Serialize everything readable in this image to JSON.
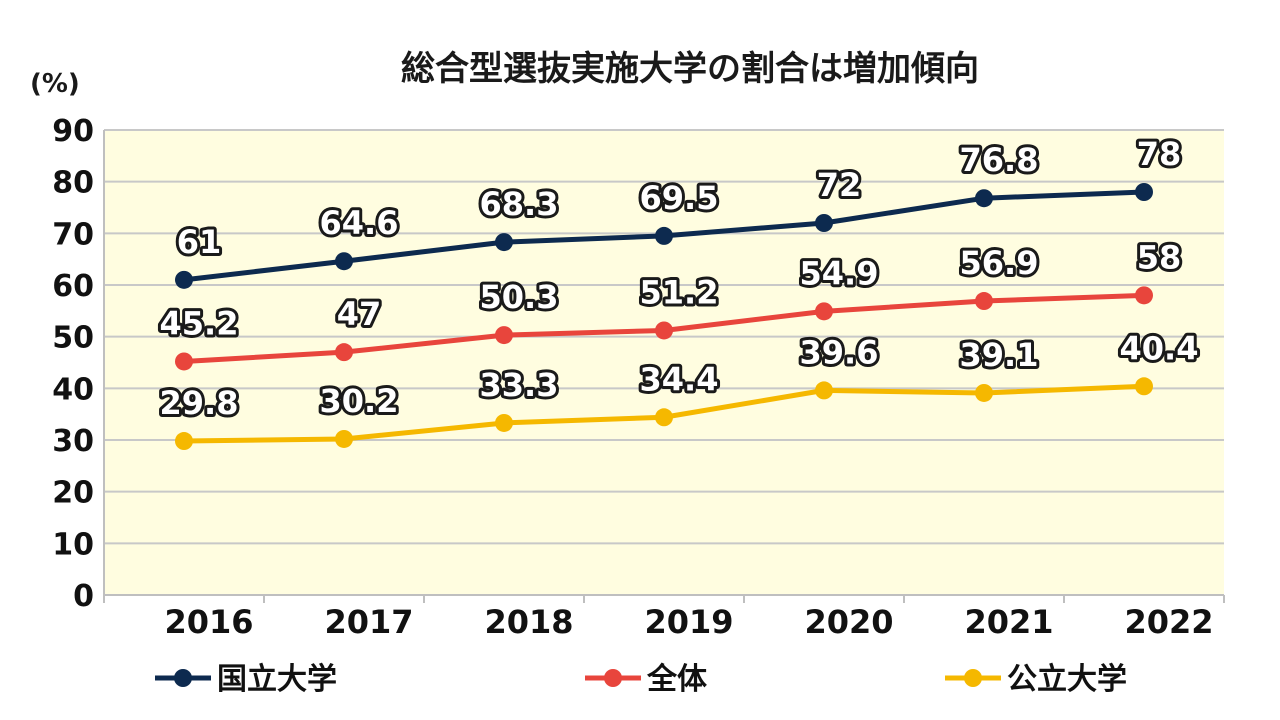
{
  "chart_data": {
    "type": "line",
    "title": "総合型選抜実施大学の割合は増加傾向",
    "ylabel": "(%)",
    "xlabel": "",
    "categories": [
      "2016",
      "2017",
      "2018",
      "2019",
      "2020",
      "2021",
      "2022"
    ],
    "ylim": [
      0,
      90
    ],
    "yticks": [
      "0",
      "10",
      "20",
      "30",
      "40",
      "50",
      "60",
      "70",
      "80",
      "90"
    ],
    "grid": true,
    "plot_background": "#fffde0",
    "legend_position": "bottom",
    "series": [
      {
        "name": "国立大学",
        "color": "#0d2a4f",
        "values": [
          61,
          64.6,
          68.3,
          69.5,
          72,
          76.8,
          78
        ],
        "labels": [
          "61",
          "64.6",
          "68.3",
          "69.5",
          "72",
          "76.8",
          "78"
        ]
      },
      {
        "name": "全体",
        "color": "#e8453c",
        "values": [
          45.2,
          47,
          50.3,
          51.2,
          54.9,
          56.9,
          58
        ],
        "labels": [
          "45.2",
          "47",
          "50.3",
          "51.2",
          "54.9",
          "56.9",
          "58"
        ]
      },
      {
        "name": "公立大学",
        "color": "#f5b800",
        "values": [
          29.8,
          30.2,
          33.3,
          34.4,
          39.6,
          39.1,
          40.4
        ],
        "labels": [
          "29.8",
          "30.2",
          "33.3",
          "34.4",
          "39.6",
          "39.1",
          "40.4"
        ]
      }
    ]
  }
}
